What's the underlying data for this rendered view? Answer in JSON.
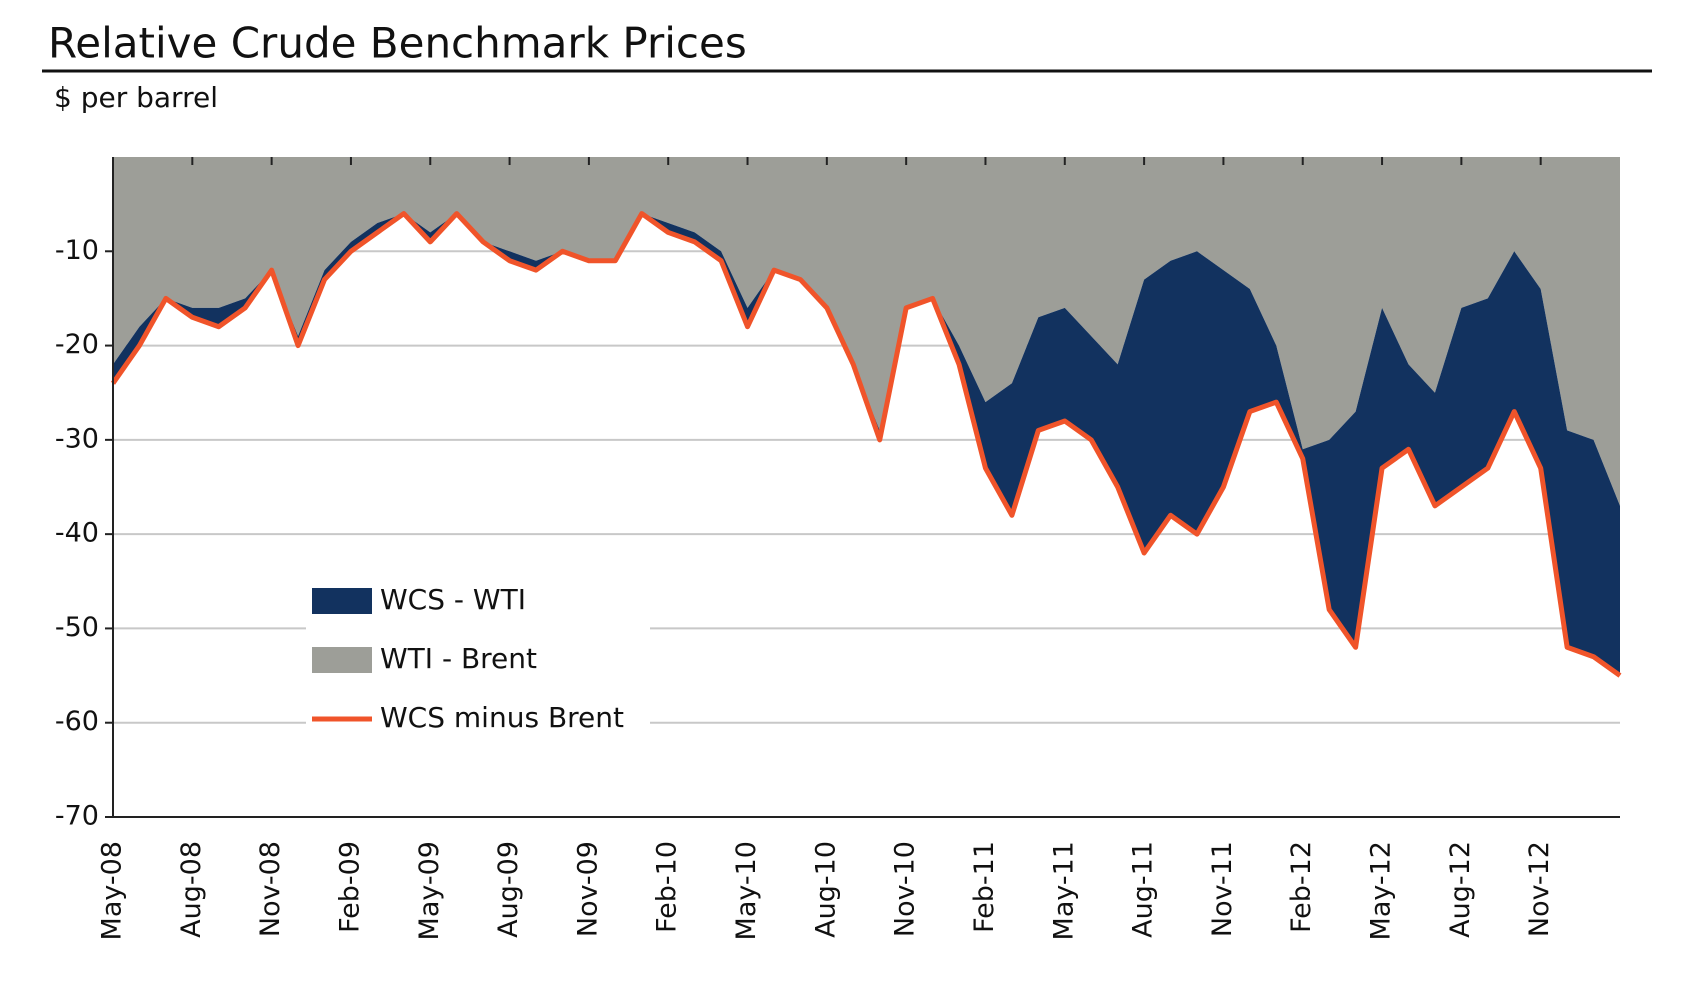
{
  "chart_data": {
    "type": "stacked-area-line",
    "title": "Relative Crude Benchmark Prices",
    "subtitle": "$ per barrel",
    "categories": [
      "May-08",
      null,
      null,
      "Aug-08",
      null,
      null,
      "Nov-08",
      null,
      null,
      "Feb-09",
      null,
      null,
      "May-09",
      null,
      null,
      "Aug-09",
      null,
      null,
      "Nov-09",
      null,
      null,
      "Feb-10",
      null,
      null,
      "May-10",
      null,
      null,
      "Aug-10",
      null,
      null,
      "Nov-10",
      null,
      null,
      "Feb-11",
      null,
      null,
      "May-11",
      null,
      null,
      "Aug-11",
      null,
      null,
      "Nov-11",
      null,
      null,
      "Feb-12",
      null,
      null,
      "May-12",
      null,
      null,
      "Aug-12",
      null,
      null,
      "Nov-12",
      null,
      null,
      null
    ],
    "series": [
      {
        "name": "WCS - WTI",
        "kind": "area",
        "stack": "below",
        "color": "#12325f",
        "values": [
          -2,
          -2,
          0,
          -1,
          -2,
          -1,
          0,
          -1,
          -1,
          -1,
          -1,
          0,
          -1,
          0,
          0,
          -1,
          -1,
          0,
          0,
          0,
          0,
          -1,
          -1,
          -1,
          -2,
          0,
          0,
          0,
          0,
          -1,
          0,
          0,
          -2,
          -7,
          -14,
          -12,
          -12,
          -11,
          -13,
          -29,
          -27,
          -30,
          -23,
          -13,
          -6,
          -1,
          -18,
          -25,
          -17,
          -9,
          -12,
          -19,
          -18,
          -17,
          -19,
          -23,
          -23,
          -18
        ]
      },
      {
        "name": "WTI - Brent",
        "kind": "area",
        "stack": "base",
        "color": "#9d9e98",
        "values": [
          -22,
          -18,
          -15,
          -16,
          -16,
          -15,
          -12,
          -19,
          -12,
          -9,
          -7,
          -6,
          -8,
          -6,
          -9,
          -10,
          -11,
          -10,
          -11,
          -11,
          -6,
          -7,
          -8,
          -10,
          -16,
          -12,
          -13,
          -16,
          -22,
          -29,
          -16,
          -15,
          -20,
          -26,
          -24,
          -17,
          -16,
          -19,
          -22,
          -13,
          -11,
          -10,
          -12,
          -14,
          -20,
          -31,
          -30,
          -27,
          -16,
          -22,
          -25,
          -16,
          -15,
          -10,
          -14,
          -29,
          -30,
          -37
        ]
      },
      {
        "name": "WCS minus Brent",
        "kind": "line",
        "color": "#f0542a",
        "values": [
          -24,
          -20,
          -15,
          -17,
          -18,
          -16,
          -12,
          -20,
          -13,
          -10,
          -8,
          -6,
          -9,
          -6,
          -9,
          -11,
          -12,
          -10,
          -11,
          -11,
          -6,
          -8,
          -9,
          -11,
          -18,
          -12,
          -13,
          -16,
          -22,
          -30,
          -16,
          -15,
          -22,
          -33,
          -38,
          -29,
          -28,
          -30,
          -35,
          -42,
          -38,
          -40,
          -35,
          -27,
          -26,
          -32,
          -48,
          -52,
          -33,
          -31,
          -37,
          -35,
          -33,
          -27,
          -33,
          -52,
          -53,
          -55
        ]
      }
    ],
    "ylim": [
      -70,
      0
    ],
    "yticks": [
      -70,
      -60,
      -50,
      -40,
      -30,
      -20,
      -10
    ],
    "grid": true,
    "legend": "lower left"
  }
}
